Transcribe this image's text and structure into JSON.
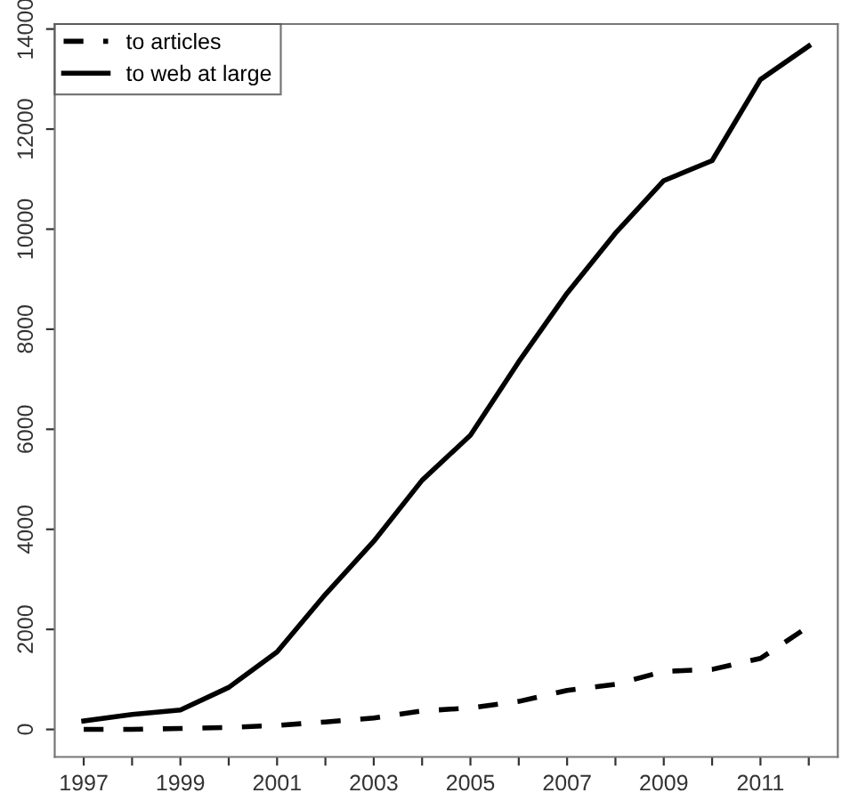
{
  "chart_data": {
    "type": "line",
    "x": [
      1997,
      1998,
      1999,
      2000,
      2001,
      2002,
      2003,
      2004,
      2005,
      2006,
      2007,
      2008,
      2009,
      2010,
      2011,
      2012
    ],
    "series": [
      {
        "name": "to articles",
        "color": "#000000",
        "line_style": "dashed",
        "values": [
          0,
          0,
          20,
          40,
          80,
          150,
          230,
          370,
          430,
          560,
          780,
          900,
          1160,
          1200,
          1420,
          2060
        ]
      },
      {
        "name": "to web at large",
        "color": "#000000",
        "line_style": "solid",
        "values": [
          170,
          300,
          390,
          840,
          1550,
          2700,
          3760,
          4980,
          5880,
          7350,
          8720,
          9920,
          10970,
          11370,
          12990,
          13660
        ]
      }
    ],
    "xlim": [
      1996.4,
      2012.6
    ],
    "ylim": [
      -550,
      14100
    ],
    "xticks": [
      1997,
      {
        "value": 1998,
        "label": null
      },
      1999,
      {
        "value": 2000,
        "label": null
      },
      2001,
      {
        "value": 2002,
        "label": null
      },
      2003,
      {
        "value": 2004,
        "label": null
      },
      2005,
      {
        "value": 2006,
        "label": null
      },
      2007,
      {
        "value": 2008,
        "label": null
      },
      2009,
      {
        "value": 2010,
        "label": null
      },
      2011,
      {
        "value": 2012,
        "label": null
      }
    ],
    "yticks": [
      0,
      2000,
      4000,
      6000,
      8000,
      10000,
      12000,
      14000
    ],
    "grid": false,
    "legend": "top left",
    "marker": "none"
  }
}
